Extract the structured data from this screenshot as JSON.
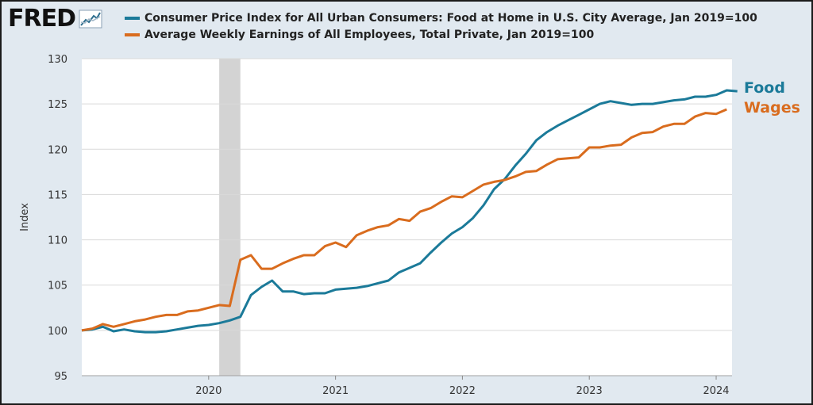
{
  "brand": {
    "name": "FRED",
    "icon": "line-chart-icon"
  },
  "chart_data": {
    "type": "line",
    "title": "",
    "xlabel": "",
    "ylabel": "Index",
    "ylim": [
      95,
      130
    ],
    "yticks": [
      95,
      100,
      105,
      110,
      115,
      120,
      125,
      130
    ],
    "xticks": [
      "2020",
      "2021",
      "2022",
      "2023",
      "2024"
    ],
    "x_start": "2019-01",
    "grid": true,
    "recession": {
      "start": "2020-02",
      "end": "2020-04"
    },
    "series": [
      {
        "name": "Consumer Price Index for All Urban Consumers: Food at Home in U.S. City Average, Jan 2019=100",
        "label": "Food",
        "color": "#1b7a99",
        "values": [
          100.0,
          100.1,
          100.4,
          99.9,
          100.1,
          99.9,
          99.8,
          99.8,
          99.9,
          100.1,
          100.3,
          100.5,
          100.6,
          100.8,
          101.1,
          101.5,
          103.9,
          104.8,
          105.5,
          104.3,
          104.3,
          104.0,
          104.1,
          104.1,
          104.5,
          104.6,
          104.7,
          104.9,
          105.2,
          105.5,
          106.4,
          106.9,
          107.4,
          108.6,
          109.7,
          110.7,
          111.4,
          112.4,
          113.8,
          115.6,
          116.7,
          118.2,
          119.5,
          121.0,
          121.9,
          122.6,
          123.2,
          123.8,
          124.4,
          125.0,
          125.3,
          125.1,
          124.9,
          125.0,
          125.0,
          125.2,
          125.4,
          125.5,
          125.8,
          125.8,
          126.0,
          126.5,
          126.4
        ]
      },
      {
        "name": "Average Weekly Earnings of All Employees, Total Private, Jan 2019=100",
        "label": "Wages",
        "color": "#d96c1e",
        "values": [
          100.0,
          100.2,
          100.7,
          100.4,
          100.7,
          101.0,
          101.2,
          101.5,
          101.7,
          101.7,
          102.1,
          102.2,
          102.5,
          102.8,
          102.7,
          107.8,
          108.3,
          106.8,
          106.8,
          107.4,
          107.9,
          108.3,
          108.3,
          109.3,
          109.7,
          109.2,
          110.5,
          111.0,
          111.4,
          111.6,
          112.3,
          112.1,
          113.1,
          113.5,
          114.2,
          114.8,
          114.7,
          115.4,
          116.1,
          116.4,
          116.6,
          117.0,
          117.5,
          117.6,
          118.3,
          118.9,
          119.0,
          119.1,
          120.2,
          120.2,
          120.4,
          120.5,
          121.3,
          121.8,
          121.9,
          122.5,
          122.8,
          122.8,
          123.6,
          124.0,
          123.9,
          124.4
        ]
      }
    ]
  }
}
